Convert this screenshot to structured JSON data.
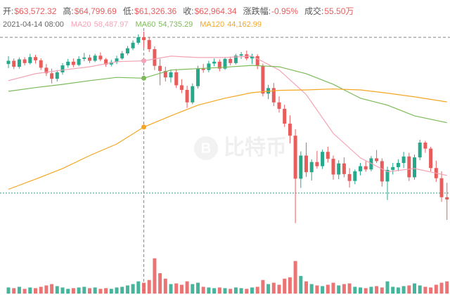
{
  "chart_data": {
    "type": "candlestick",
    "header": [
      {
        "label": "开:",
        "value": "$63,572.32"
      },
      {
        "label": "高:",
        "value": "$64,799.69"
      },
      {
        "label": "低:",
        "value": "$61,326.36"
      },
      {
        "label": "收:",
        "value": "$62,964.34"
      },
      {
        "label": "涨跌幅:",
        "value": "-0.95%"
      },
      {
        "label": "成交:",
        "value": "55.50万"
      }
    ],
    "date": "2021-04-14 08:00",
    "watermark": "比特币",
    "ylim": [
      20000,
      68600
    ],
    "up_color": "#26a88b",
    "down_color": "#e85c5c",
    "open": [
      57800,
      58500,
      57200,
      58800,
      58000,
      59300,
      58600,
      57000,
      55800,
      54600,
      56000,
      57500,
      58300,
      57600,
      58900,
      59200,
      58500,
      59600,
      58800,
      57700,
      58200,
      59000,
      60100,
      61200,
      62400,
      63572.32,
      62964,
      61000,
      57400,
      56300,
      54900,
      56000,
      53200,
      52200,
      49500,
      53000,
      56800,
      56500,
      57900,
      58300,
      56800,
      58900,
      58000,
      59600,
      59900,
      59000,
      59500,
      57400,
      51400,
      52600,
      49500,
      48100,
      44900,
      42300,
      33000,
      38000,
      34400,
      36600,
      35700,
      38800,
      37300,
      33900,
      36300,
      34000,
      32500,
      34600,
      35700,
      35000,
      37400,
      36800,
      32400,
      34900,
      35500,
      36400,
      37800,
      33300,
      37600,
      40800,
      39500,
      35300,
      33100,
      29000
    ],
    "high": [
      59500,
      59000,
      59200,
      59300,
      60000,
      59800,
      59000,
      57800,
      56800,
      56500,
      58000,
      58900,
      59000,
      59500,
      60200,
      59800,
      60000,
      60300,
      59100,
      58700,
      59600,
      60600,
      61700,
      62900,
      64200,
      64799.69,
      63500,
      61600,
      58900,
      57200,
      56600,
      56700,
      54500,
      53100,
      53600,
      57400,
      57800,
      58500,
      59000,
      58800,
      59200,
      59400,
      60000,
      60400,
      60700,
      60000,
      59900,
      57900,
      53300,
      53700,
      50800,
      49000,
      46700,
      43700,
      38900,
      40800,
      37200,
      39000,
      39300,
      39900,
      38000,
      37000,
      37600,
      35300,
      35000,
      36400,
      36800,
      37900,
      39200,
      37400,
      35600,
      36400,
      37200,
      38800,
      38600,
      38200,
      41400,
      41200,
      39900,
      36900,
      34600,
      32100
    ],
    "low": [
      56900,
      56700,
      56800,
      57500,
      57700,
      57900,
      56500,
      55200,
      53600,
      54000,
      55500,
      57000,
      57100,
      57300,
      58400,
      58000,
      58200,
      58400,
      57200,
      57300,
      57800,
      58700,
      59700,
      60800,
      62000,
      61326.36,
      60400,
      56500,
      53200,
      54000,
      53800,
      52600,
      51500,
      48300,
      49100,
      52500,
      55900,
      56000,
      57300,
      56200,
      56500,
      57500,
      57700,
      58900,
      58600,
      57800,
      56700,
      50800,
      50200,
      48700,
      47300,
      44200,
      40600,
      23400,
      31000,
      33400,
      32600,
      35200,
      35100,
      36500,
      32800,
      32900,
      33300,
      31100,
      31800,
      33700,
      34500,
      34600,
      36400,
      31300,
      28400,
      33900,
      34600,
      35300,
      32500,
      32800,
      37000,
      38600,
      34600,
      32300,
      28000,
      24100
    ],
    "close": [
      58500,
      57200,
      58800,
      58000,
      59300,
      58600,
      57000,
      55800,
      54600,
      56000,
      57500,
      58300,
      57600,
      58900,
      59200,
      58500,
      59600,
      58800,
      57700,
      58200,
      59000,
      60100,
      61200,
      62400,
      63572.32,
      62964.34,
      61000,
      57400,
      56300,
      54900,
      56000,
      53200,
      52200,
      49500,
      53000,
      56800,
      56500,
      57900,
      58300,
      56800,
      58900,
      58000,
      59600,
      59900,
      59000,
      59500,
      57400,
      51400,
      52600,
      49500,
      48100,
      44900,
      42300,
      33000,
      38000,
      34400,
      36600,
      35700,
      38800,
      37300,
      33900,
      36300,
      34000,
      32500,
      34600,
      35700,
      35000,
      37400,
      36800,
      32400,
      34900,
      35500,
      36400,
      37800,
      33300,
      37600,
      40800,
      39500,
      35300,
      33100,
      29000,
      28500
    ],
    "volume": {
      "ylim": [
        0,
        60
      ],
      "values": [
        9,
        8,
        10,
        7,
        9,
        8,
        10,
        12,
        14,
        11,
        9,
        7,
        8,
        9,
        10,
        8,
        9,
        7,
        8,
        7,
        9,
        10,
        12,
        14,
        18,
        16,
        20,
        52,
        30,
        22,
        14,
        15,
        13,
        18,
        14,
        16,
        10,
        9,
        8,
        9,
        8,
        7,
        9,
        8,
        7,
        9,
        10,
        20,
        14,
        16,
        13,
        22,
        24,
        48,
        26,
        18,
        14,
        12,
        11,
        13,
        16,
        12,
        14,
        15,
        10,
        9,
        8,
        10,
        11,
        9,
        18,
        10,
        9,
        11,
        12,
        15,
        12,
        10,
        9,
        13,
        16,
        18
      ]
    },
    "ma": [
      {
        "name": "MA20",
        "value_label": "58,487.97",
        "color": "#f4a3b4",
        "x": [
          0,
          5,
          10,
          15,
          20,
          25,
          30,
          35,
          40,
          45,
          50,
          55,
          60,
          65,
          70,
          75,
          81
        ],
        "values": [
          54200,
          55700,
          56500,
          57200,
          58300,
          58487.97,
          59500,
          59200,
          59200,
          59500,
          56500,
          51200,
          42800,
          37500,
          34500,
          35200,
          33700
        ]
      },
      {
        "name": "MA60",
        "value_label": "54,735.29",
        "color": "#7cba59",
        "x": [
          0,
          5,
          10,
          15,
          20,
          25,
          30,
          35,
          40,
          45,
          50,
          55,
          60,
          65,
          70,
          75,
          81
        ],
        "values": [
          51900,
          52700,
          53400,
          54200,
          54900,
          54735.29,
          56500,
          56800,
          57100,
          57500,
          57200,
          55700,
          53400,
          50400,
          48900,
          46600,
          45100
        ]
      },
      {
        "name": "MA120",
        "value_label": "44,162.99",
        "color": "#f5a623",
        "x": [
          0,
          5,
          10,
          15,
          20,
          25,
          30,
          35,
          40,
          45,
          50,
          55,
          60,
          65,
          70,
          75,
          81
        ],
        "values": [
          30700,
          32900,
          35200,
          38000,
          40500,
          44162.99,
          46600,
          48900,
          50400,
          51600,
          52100,
          52200,
          52400,
          52200,
          51500,
          50700,
          49600
        ]
      }
    ],
    "crosshair_index": 25,
    "price_line": {
      "value": 29900,
      "color": "#2a9d8f"
    }
  }
}
